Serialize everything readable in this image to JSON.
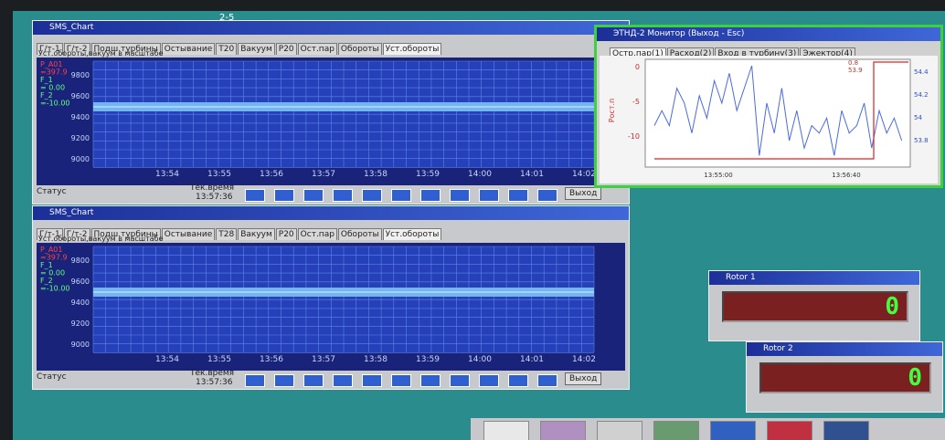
{
  "desktop_label": "2-5",
  "windows": [
    {
      "title": "SMS_Chart",
      "tabs": [
        "Г/т-1",
        "Г/т-2",
        "Подш.турбины",
        "Остывание",
        "Т20",
        "Вакуум",
        "Р20",
        "Ост.пар",
        "Обороты",
        "Уст.обороты"
      ],
      "panel_label": "Уст.обороты,вакуум в масштабе",
      "legend": [
        "P_A01",
        "=397.9",
        "F_1",
        "= 0.00",
        "F_2",
        "=-10.00"
      ],
      "yticks": [
        "9800",
        "9600",
        "9400",
        "9200",
        "9000"
      ],
      "xticks": [
        "13:54",
        "13:55",
        "13:56",
        "13:57",
        "13:58",
        "13:59",
        "14:00",
        "14:01",
        "14:02"
      ],
      "status": "Статус",
      "time_label": "Тек.время",
      "time": "13:57:36",
      "exit": "Выход"
    },
    {
      "title": "SMS_Chart",
      "tabs": [
        "Г/т-1",
        "Г/т-2",
        "Подш.турбины",
        "Остывание",
        "Т28",
        "Вакуум",
        "Р20",
        "Ост.пар",
        "Обороты",
        "Уст.обороты"
      ],
      "panel_label": "Уст.обороты,вакуум в масштабе",
      "legend": [
        "P_A01",
        "=397.9",
        "F_1",
        "= 0.00",
        "F_2",
        "=-10.00"
      ],
      "yticks": [
        "9800",
        "9600",
        "9400",
        "9200",
        "9000"
      ],
      "xticks": [
        "13:54",
        "13:55",
        "13:56",
        "13:57",
        "13:58",
        "13:59",
        "14:00",
        "14:01",
        "14:02"
      ],
      "status": "Статус",
      "time_label": "Тек.время",
      "time": "13:57:36",
      "exit": "Выход"
    }
  ],
  "monitor": {
    "title": "ЭТНД-2 Монитор (Выход - Esc)",
    "tabs": [
      "Остр.пар(1)",
      "Расход(2)",
      "Вход в турбину(3)",
      "Эжектор(4)"
    ],
    "y_label": "Рост.п",
    "yticks": [
      "0",
      "-5",
      "-10"
    ],
    "y2ticks": [
      "54.4",
      "54.2",
      "54",
      "53.8"
    ],
    "xticks": [
      "13:55:00",
      "13:56:40"
    ],
    "annotations": [
      "0.8",
      "53.9"
    ],
    "trace": [
      -8,
      -6,
      -8,
      -3,
      -5,
      -9,
      -4,
      -7,
      -2,
      -5,
      -1,
      -6,
      -3,
      0,
      -12,
      -5,
      -9,
      -3,
      -10,
      -6,
      -11,
      -8,
      -9,
      -7,
      -12,
      -6,
      -9,
      -8,
      -5,
      -11,
      -6,
      -9,
      -7,
      -10
    ]
  },
  "rotors": [
    {
      "title": "Rotor 1",
      "value": "0"
    },
    {
      "title": "Rotor 2",
      "value": "0"
    }
  ]
}
